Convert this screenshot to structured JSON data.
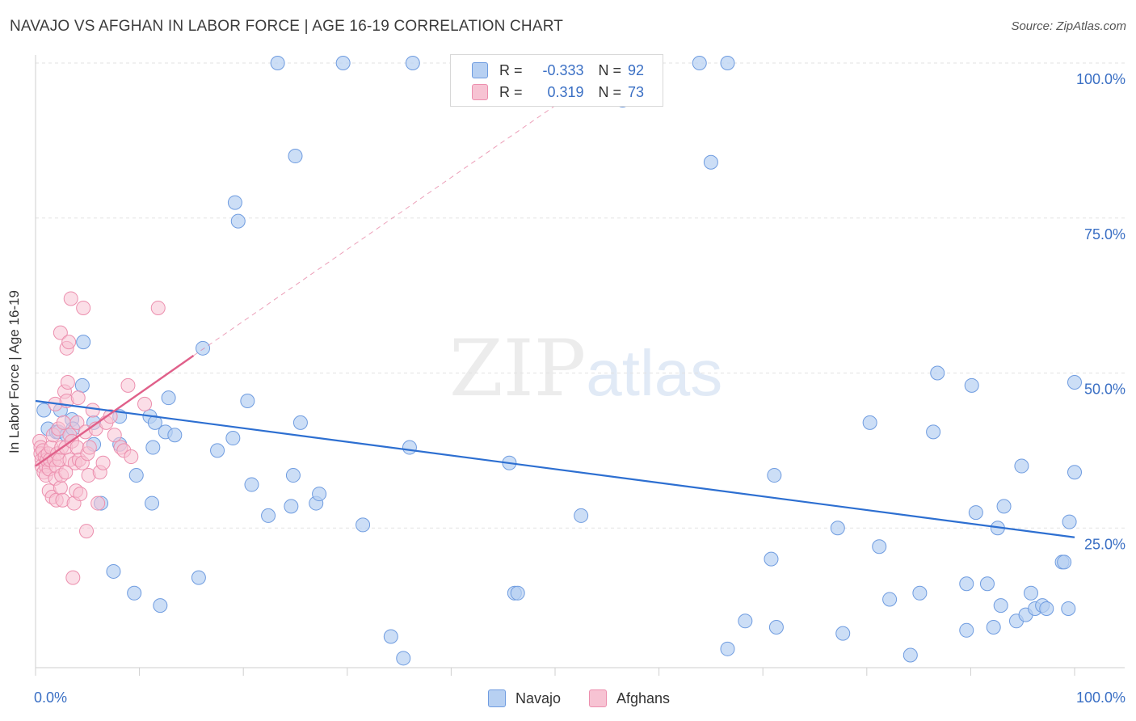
{
  "header": {
    "title": "NAVAJO VS AFGHAN IN LABOR FORCE | AGE 16-19 CORRELATION CHART",
    "source": "Source: ZipAtlas.com"
  },
  "watermark": {
    "zip": "ZIP",
    "atlas": "atlas"
  },
  "legend": {
    "r_label": "R =",
    "n_label": "N =",
    "navajo": {
      "r": "-0.333",
      "n": "92"
    },
    "afghans": {
      "r": "0.319",
      "n": "73"
    }
  },
  "bottom_legend": {
    "navajo": "Navajo",
    "afghans": "Afghans"
  },
  "colors": {
    "navajo_fill": "#b7d0f2",
    "navajo_stroke": "#6f9ce0",
    "navajo_line": "#2d6fd1",
    "afghan_fill": "#f7c3d3",
    "afghan_stroke": "#ec8fae",
    "afghan_line": "#e0608a",
    "grid": "#e2e2e2",
    "tick_label": "#3a6fc4"
  },
  "chart_data": {
    "type": "scatter",
    "title": "NAVAJO VS AFGHAN IN LABOR FORCE | AGE 16-19 CORRELATION CHART",
    "xlabel": "",
    "ylabel": "In Labor Force | Age 16-19",
    "xlim": [
      0,
      100
    ],
    "ylim": [
      0,
      102
    ],
    "x_tick_labels": [
      "0.0%",
      "100.0%"
    ],
    "y_ticks": [
      25,
      50,
      75,
      100
    ],
    "y_tick_labels": [
      "25.0%",
      "50.0%",
      "75.0%",
      "100.0%"
    ],
    "grid": true,
    "legend_position": "top-center",
    "series": [
      {
        "name": "Navajo",
        "r": -0.333,
        "n": 92,
        "trend": {
          "x": [
            0,
            100
          ],
          "y": [
            45.5,
            23.5
          ]
        },
        "points": [
          [
            0.8,
            44
          ],
          [
            1.2,
            41
          ],
          [
            2,
            40.5
          ],
          [
            2.2,
            40.5
          ],
          [
            2.4,
            44
          ],
          [
            3,
            40
          ],
          [
            3.5,
            42.5
          ],
          [
            3.6,
            41
          ],
          [
            4.5,
            48
          ],
          [
            4.6,
            55
          ],
          [
            5.6,
            42
          ],
          [
            5.6,
            38.5
          ],
          [
            6.3,
            29
          ],
          [
            7.5,
            18
          ],
          [
            8.1,
            43
          ],
          [
            8.1,
            38.5
          ],
          [
            9.7,
            33.5
          ],
          [
            9.5,
            14.5
          ],
          [
            11,
            43
          ],
          [
            11.2,
            29
          ],
          [
            11.3,
            38
          ],
          [
            11.5,
            42
          ],
          [
            12,
            12.5
          ],
          [
            12.5,
            40.5
          ],
          [
            12.8,
            46
          ],
          [
            13.4,
            40
          ],
          [
            15.7,
            17
          ],
          [
            16.1,
            54
          ],
          [
            17.5,
            37.5
          ],
          [
            19,
            39.5
          ],
          [
            19.2,
            77.5
          ],
          [
            19.5,
            74.5
          ],
          [
            20.4,
            45.5
          ],
          [
            20.8,
            32
          ],
          [
            22.4,
            27
          ],
          [
            23.3,
            100
          ],
          [
            24.6,
            28.5
          ],
          [
            25,
            85
          ],
          [
            25.5,
            42
          ],
          [
            24.8,
            33.5
          ],
          [
            27,
            29
          ],
          [
            27.3,
            30.5
          ],
          [
            29.6,
            100
          ],
          [
            31.5,
            25.5
          ],
          [
            34.2,
            7.5
          ],
          [
            35.4,
            4
          ],
          [
            36,
            38
          ],
          [
            36.3,
            100
          ],
          [
            45.6,
            35.5
          ],
          [
            46.1,
            14.5
          ],
          [
            46.4,
            14.5
          ],
          [
            52.5,
            27
          ],
          [
            56.5,
            94
          ],
          [
            63.9,
            100
          ],
          [
            65,
            84
          ],
          [
            66.6,
            100
          ],
          [
            66.6,
            5.5
          ],
          [
            68.3,
            10
          ],
          [
            70.8,
            20
          ],
          [
            71.1,
            33.5
          ],
          [
            71.3,
            9
          ],
          [
            77.2,
            25
          ],
          [
            77.7,
            8
          ],
          [
            80.3,
            42
          ],
          [
            81.2,
            22
          ],
          [
            82.2,
            13.5
          ],
          [
            84.2,
            4.5
          ],
          [
            85.1,
            14.5
          ],
          [
            86.8,
            50
          ],
          [
            86.4,
            40.5
          ],
          [
            89.6,
            8.5
          ],
          [
            89.6,
            16
          ],
          [
            90.1,
            48
          ],
          [
            90.5,
            27.5
          ],
          [
            92.2,
            9
          ],
          [
            91.6,
            16
          ],
          [
            92.6,
            25
          ],
          [
            92.9,
            12.5
          ],
          [
            93.2,
            28.5
          ],
          [
            94.4,
            10
          ],
          [
            94.9,
            35
          ],
          [
            95.3,
            11
          ],
          [
            95.8,
            14.5
          ],
          [
            96.2,
            12
          ],
          [
            96.9,
            12.5
          ],
          [
            97.3,
            12
          ],
          [
            98.8,
            19.5
          ],
          [
            99,
            19.5
          ],
          [
            99.4,
            12
          ],
          [
            99.5,
            26
          ],
          [
            100,
            48.5
          ],
          [
            100,
            34
          ]
        ]
      },
      {
        "name": "Afghans",
        "r": 0.319,
        "n": 73,
        "trend": {
          "x": [
            0,
            15.2
          ],
          "y": [
            35,
            52.8
          ]
        },
        "trend_extension": {
          "x": [
            15.2,
            54.2
          ],
          "y": [
            52.8,
            98
          ]
        },
        "points": [
          [
            0.4,
            39
          ],
          [
            0.5,
            38
          ],
          [
            0.5,
            37
          ],
          [
            0.6,
            36
          ],
          [
            0.6,
            35
          ],
          [
            0.7,
            37.5
          ],
          [
            0.8,
            34
          ],
          [
            0.9,
            36.5
          ],
          [
            1,
            35
          ],
          [
            1,
            33.5
          ],
          [
            1.1,
            36
          ],
          [
            1.2,
            37
          ],
          [
            1.3,
            34.5
          ],
          [
            1.3,
            31
          ],
          [
            1.4,
            36
          ],
          [
            1.5,
            38
          ],
          [
            1.6,
            30
          ],
          [
            1.7,
            40
          ],
          [
            1.8,
            36
          ],
          [
            1.9,
            45
          ],
          [
            1.9,
            33
          ],
          [
            2,
            35
          ],
          [
            2,
            29.5
          ],
          [
            2.1,
            37
          ],
          [
            2.2,
            41
          ],
          [
            2.3,
            36
          ],
          [
            2.4,
            56.5
          ],
          [
            2.4,
            31.5
          ],
          [
            2.5,
            38
          ],
          [
            2.5,
            33.5
          ],
          [
            2.6,
            29.5
          ],
          [
            2.7,
            42
          ],
          [
            2.8,
            47
          ],
          [
            2.9,
            38
          ],
          [
            2.9,
            34
          ],
          [
            3,
            54
          ],
          [
            3,
            45.5
          ],
          [
            3.1,
            48.5
          ],
          [
            3.2,
            55
          ],
          [
            3.3,
            40
          ],
          [
            3.3,
            36
          ],
          [
            3.4,
            62
          ],
          [
            3.5,
            39
          ],
          [
            3.6,
            17
          ],
          [
            3.7,
            29
          ],
          [
            3.8,
            35.5
          ],
          [
            3.9,
            31
          ],
          [
            4,
            42
          ],
          [
            4,
            38
          ],
          [
            4.1,
            46
          ],
          [
            4.2,
            36
          ],
          [
            4.3,
            30.5
          ],
          [
            4.5,
            35.5
          ],
          [
            4.6,
            60.5
          ],
          [
            4.8,
            40.5
          ],
          [
            4.9,
            24.5
          ],
          [
            5,
            37
          ],
          [
            5.1,
            33.5
          ],
          [
            5.2,
            38
          ],
          [
            5.5,
            44
          ],
          [
            5.8,
            41
          ],
          [
            6,
            29
          ],
          [
            6.2,
            34
          ],
          [
            6.5,
            35.5
          ],
          [
            6.8,
            42
          ],
          [
            7.2,
            43
          ],
          [
            7.6,
            40
          ],
          [
            8.2,
            38
          ],
          [
            8.5,
            37.5
          ],
          [
            8.9,
            48
          ],
          [
            9.2,
            36.5
          ],
          [
            10.5,
            45
          ],
          [
            11.8,
            60.5
          ]
        ]
      }
    ]
  }
}
